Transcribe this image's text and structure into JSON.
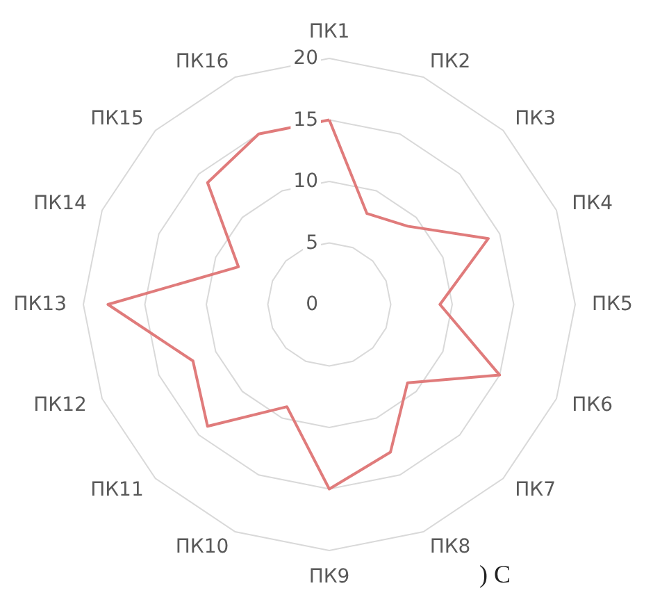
{
  "chart_data": {
    "type": "radar",
    "categories": [
      "ПК1",
      "ПК2",
      "ПК3",
      "ПК4",
      "ПК5",
      "ПК6",
      "ПК7",
      "ПК8",
      "ПК9",
      "ПК10",
      "ПК11",
      "ПК12",
      "ПК13",
      "ПК14",
      "ПК15",
      "ПК16"
    ],
    "series": [
      {
        "color": "#e07b7b",
        "values": [
          15,
          8,
          9,
          14,
          9,
          15,
          9,
          13,
          15,
          9,
          14,
          12,
          18,
          8,
          14,
          15
        ]
      }
    ],
    "ylim": [
      0,
      20
    ],
    "yticks": [
      0,
      5,
      10,
      15,
      20
    ],
    "grid": true,
    "marker": "none",
    "line_style": "solid",
    "annotations": [
      ") С"
    ]
  }
}
